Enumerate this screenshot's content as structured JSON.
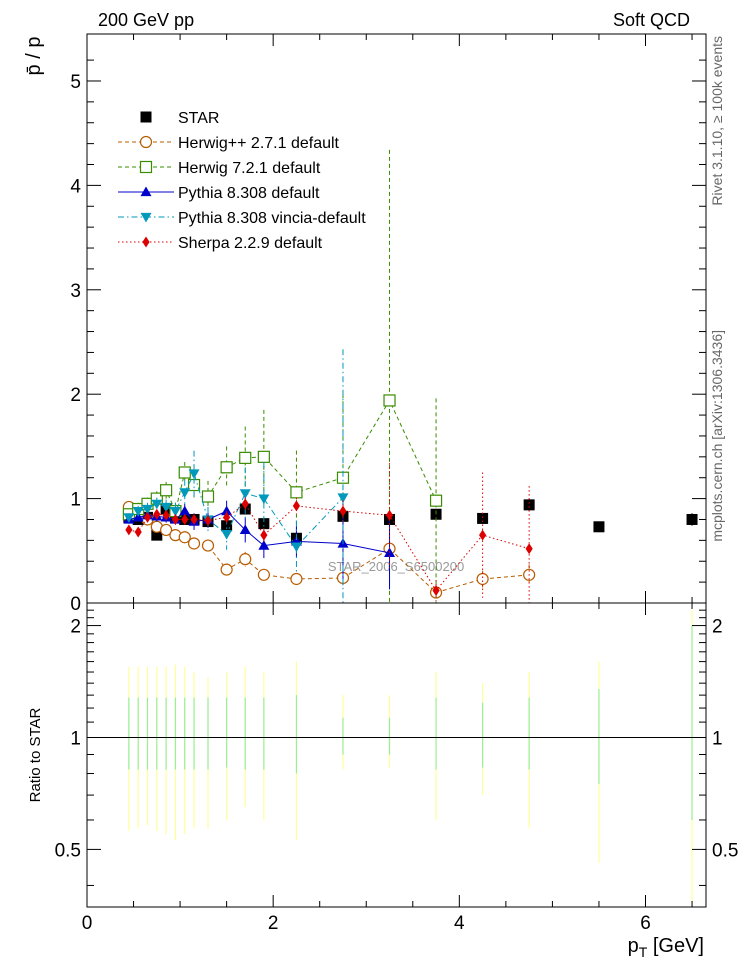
{
  "header": {
    "left": "200 GeV pp",
    "right": "Soft QCD"
  },
  "side_labels": {
    "rivet": "Rivet 3.1.10, ≥ 100k events",
    "mcplots": "mcplots.cern.ch [arXiv:1306.3436]"
  },
  "watermark": "STAR_2006_S6500200",
  "colors": {
    "star": "#000000",
    "herwigpp": "#b85c00",
    "herwig7": "#3a8c00",
    "pythia": "#0000cc",
    "vincia": "#0099bb",
    "sherpa": "#dd0000",
    "band_stat": "#99ee99",
    "band_tot": "#ffff99"
  },
  "chart_data": [
    {
      "type": "scatter",
      "panel": "main",
      "ylabel": "p̄ / p",
      "xlim": [
        0,
        6.65
      ],
      "ylim": [
        0,
        5.45
      ],
      "xticks": [
        0,
        2,
        4,
        6
      ],
      "yticks": [
        0,
        1,
        2,
        3,
        4,
        5
      ],
      "ytick_labels": [
        "0",
        "1",
        "2",
        "3",
        "4",
        "5"
      ],
      "legend_position": "upper-left",
      "series": [
        {
          "name": "STAR",
          "key": "star",
          "marker": "square-filled",
          "line": "none",
          "x": [
            0.45,
            0.55,
            0.65,
            0.75,
            0.85,
            0.95,
            1.05,
            1.15,
            1.3,
            1.5,
            1.7,
            1.9,
            2.25,
            2.75,
            3.25,
            3.75,
            4.25,
            4.75,
            5.5,
            6.5
          ],
          "y": [
            0.82,
            0.8,
            0.82,
            0.65,
            0.9,
            0.82,
            0.8,
            0.8,
            0.78,
            0.74,
            0.9,
            0.76,
            0.62,
            0.83,
            0.8,
            0.85,
            0.81,
            0.94,
            0.73,
            0.8
          ],
          "yerr": [
            0.04,
            0.04,
            0.04,
            0.05,
            0.04,
            0.04,
            0.04,
            0.04,
            0.04,
            0.04,
            0.05,
            0.05,
            0.05,
            0.05,
            0.05,
            0.05,
            0.05,
            0.06,
            0.05,
            0.06
          ]
        },
        {
          "name": "Herwig++ 2.7.1 default",
          "key": "herwigpp",
          "marker": "circle-open",
          "line": "dashed",
          "x": [
            0.45,
            0.55,
            0.65,
            0.75,
            0.85,
            0.95,
            1.05,
            1.15,
            1.3,
            1.5,
            1.7,
            1.9,
            2.25,
            2.75,
            3.25,
            3.75,
            4.25,
            4.75
          ],
          "y": [
            0.92,
            0.85,
            0.8,
            0.73,
            0.7,
            0.65,
            0.63,
            0.57,
            0.55,
            0.32,
            0.42,
            0.27,
            0.23,
            0.24,
            0.52,
            0.1,
            0.23,
            0.27
          ],
          "yerr": [
            0.05,
            0.05,
            0.05,
            0.05,
            0.05,
            0.05,
            0.05,
            0.05,
            0.05,
            0.05,
            0.07,
            0.05,
            0.05,
            0.06,
            0.35,
            0.05,
            0.08,
            0.1
          ]
        },
        {
          "name": "Herwig 7.2.1 default",
          "key": "herwig7",
          "marker": "square-open",
          "line": "dashed",
          "x": [
            0.45,
            0.55,
            0.65,
            0.75,
            0.85,
            0.95,
            1.05,
            1.15,
            1.3,
            1.5,
            1.7,
            1.9,
            2.25,
            2.75,
            3.25,
            3.75
          ],
          "y": [
            0.85,
            0.9,
            0.95,
            1.0,
            1.08,
            0.88,
            1.25,
            1.13,
            1.02,
            1.3,
            1.39,
            1.4,
            1.06,
            1.2,
            1.94,
            0.98
          ],
          "yerr": [
            0.05,
            0.06,
            0.06,
            0.07,
            0.08,
            0.08,
            0.1,
            0.12,
            0.15,
            0.2,
            0.3,
            0.45,
            0.4,
            0.8,
            2.4,
            0.98
          ]
        },
        {
          "name": "Pythia 8.308 default",
          "key": "pythia",
          "marker": "triangle-up-filled",
          "line": "solid",
          "x": [
            0.45,
            0.55,
            0.65,
            0.75,
            0.85,
            0.95,
            1.05,
            1.15,
            1.3,
            1.5,
            1.7,
            1.9,
            2.25,
            2.75,
            3.25
          ],
          "y": [
            0.8,
            0.82,
            0.84,
            0.83,
            0.82,
            0.8,
            0.88,
            0.78,
            0.8,
            0.88,
            0.7,
            0.55,
            0.59,
            0.57,
            0.48
          ],
          "yerr": [
            0.04,
            0.04,
            0.04,
            0.05,
            0.05,
            0.05,
            0.07,
            0.08,
            0.08,
            0.1,
            0.12,
            0.12,
            0.15,
            0.4,
            0.35
          ]
        },
        {
          "name": "Pythia 8.308 vincia-default",
          "key": "vincia",
          "marker": "triangle-down-filled",
          "line": "dashdot",
          "x": [
            0.45,
            0.55,
            0.65,
            0.75,
            0.85,
            0.95,
            1.05,
            1.15,
            1.3,
            1.5,
            1.7,
            1.9,
            2.25,
            2.75
          ],
          "y": [
            0.82,
            0.88,
            0.9,
            0.95,
            0.92,
            0.88,
            1.06,
            1.24,
            0.8,
            0.66,
            1.05,
            1.0,
            0.54,
            1.01
          ],
          "yerr": [
            0.04,
            0.05,
            0.06,
            0.06,
            0.07,
            0.08,
            0.12,
            0.22,
            0.12,
            0.15,
            0.25,
            0.35,
            0.25,
            1.42
          ]
        },
        {
          "name": "Sherpa 2.2.9 default",
          "key": "sherpa",
          "marker": "diamond-filled",
          "line": "dotted",
          "x": [
            0.45,
            0.55,
            0.65,
            0.75,
            0.85,
            0.95,
            1.05,
            1.15,
            1.3,
            1.5,
            1.7,
            1.9,
            2.25,
            2.75,
            3.25,
            3.75,
            4.25,
            4.75
          ],
          "y": [
            0.7,
            0.68,
            0.82,
            0.85,
            0.84,
            0.8,
            0.8,
            0.8,
            0.79,
            0.82,
            0.95,
            0.65,
            0.93,
            0.88,
            0.84,
            0.12,
            0.65,
            0.52
          ],
          "yerr": [
            0.04,
            0.04,
            0.04,
            0.04,
            0.05,
            0.05,
            0.05,
            0.05,
            0.05,
            0.06,
            0.06,
            0.07,
            0.08,
            0.1,
            0.5,
            0.1,
            0.6,
            0.6
          ]
        }
      ]
    },
    {
      "type": "area",
      "panel": "ratio",
      "ylabel": "Ratio to STAR",
      "xlabel": "p_T [GeV]",
      "xlim": [
        0,
        6.65
      ],
      "ylim": [
        0.35,
        2.3
      ],
      "scale": "log",
      "reference_line": 1,
      "xticks": [
        0,
        2,
        4,
        6
      ],
      "xtick_labels": [
        "0",
        "2",
        "4",
        "6"
      ],
      "yticks": [
        0.5,
        1,
        2
      ],
      "ytick_labels": [
        "0.5",
        "1",
        "2"
      ],
      "bands": {
        "x": [
          0.45,
          0.55,
          0.65,
          0.75,
          0.85,
          0.95,
          1.05,
          1.15,
          1.3,
          1.5,
          1.7,
          1.9,
          2.25,
          2.75,
          3.25,
          3.75,
          4.25,
          4.75,
          5.5,
          6.5
        ],
        "stat_low": [
          0.82,
          0.82,
          0.82,
          0.82,
          0.82,
          0.82,
          0.82,
          0.82,
          0.82,
          0.83,
          0.82,
          0.82,
          0.8,
          0.9,
          0.9,
          0.82,
          0.83,
          0.82,
          0.75,
          0.6
        ],
        "stat_high": [
          1.28,
          1.28,
          1.28,
          1.28,
          1.28,
          1.28,
          1.28,
          1.28,
          1.28,
          1.28,
          1.28,
          1.28,
          1.3,
          1.13,
          1.13,
          1.28,
          1.24,
          1.28,
          1.35,
          2.0
        ],
        "tot_low": [
          0.56,
          0.57,
          0.58,
          0.56,
          0.55,
          0.53,
          0.55,
          0.57,
          0.57,
          0.6,
          0.65,
          0.6,
          0.53,
          0.82,
          0.83,
          0.6,
          0.7,
          0.57,
          0.46,
          0.35
        ],
        "tot_high": [
          1.55,
          1.55,
          1.55,
          1.55,
          1.55,
          1.57,
          1.55,
          1.5,
          1.45,
          1.5,
          1.55,
          1.5,
          1.6,
          1.3,
          1.3,
          1.5,
          1.4,
          1.5,
          1.6,
          2.2
        ]
      }
    }
  ]
}
